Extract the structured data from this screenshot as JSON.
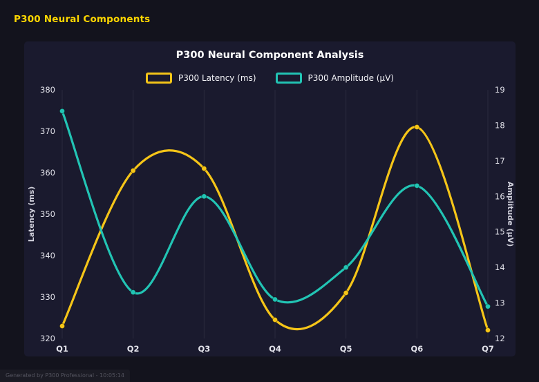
{
  "page": {
    "header_title": "P300 Neural Components",
    "footer": "Generated by P300 Professional - 10:05:14"
  },
  "chart_data": {
    "type": "line",
    "title": "P300 Neural Component Analysis",
    "categories": [
      "Q1",
      "Q2",
      "Q3",
      "Q4",
      "Q5",
      "Q6",
      "Q7"
    ],
    "series": [
      {
        "name": "P300 Latency (ms)",
        "axis": "left",
        "color": "#f5c518",
        "values": [
          323,
          360.5,
          361,
          324.5,
          331,
          371,
          322
        ]
      },
      {
        "name": "P300 Amplitude (μV)",
        "axis": "right",
        "color": "#22c4b4",
        "values": [
          18.4,
          13.3,
          16.0,
          13.1,
          14.0,
          16.3,
          12.9
        ]
      }
    ],
    "left_axis": {
      "label": "Latency (ms)",
      "min": 320,
      "max": 380,
      "ticks": [
        320,
        330,
        340,
        350,
        360,
        370,
        380
      ]
    },
    "right_axis": {
      "label": "Amplitude (μV)",
      "min": 12,
      "max": 19,
      "ticks": [
        12,
        13,
        14,
        15,
        16,
        17,
        18,
        19
      ]
    },
    "legend_position": "top",
    "grid": "vertical",
    "colors": {
      "panel_bg": "#1a1a2e",
      "page_bg": "#13131d",
      "grid": "rgba(255,255,255,0.08)",
      "tick_text": "#e2e2ea",
      "axis_title_text": "#cfcfda"
    }
  }
}
